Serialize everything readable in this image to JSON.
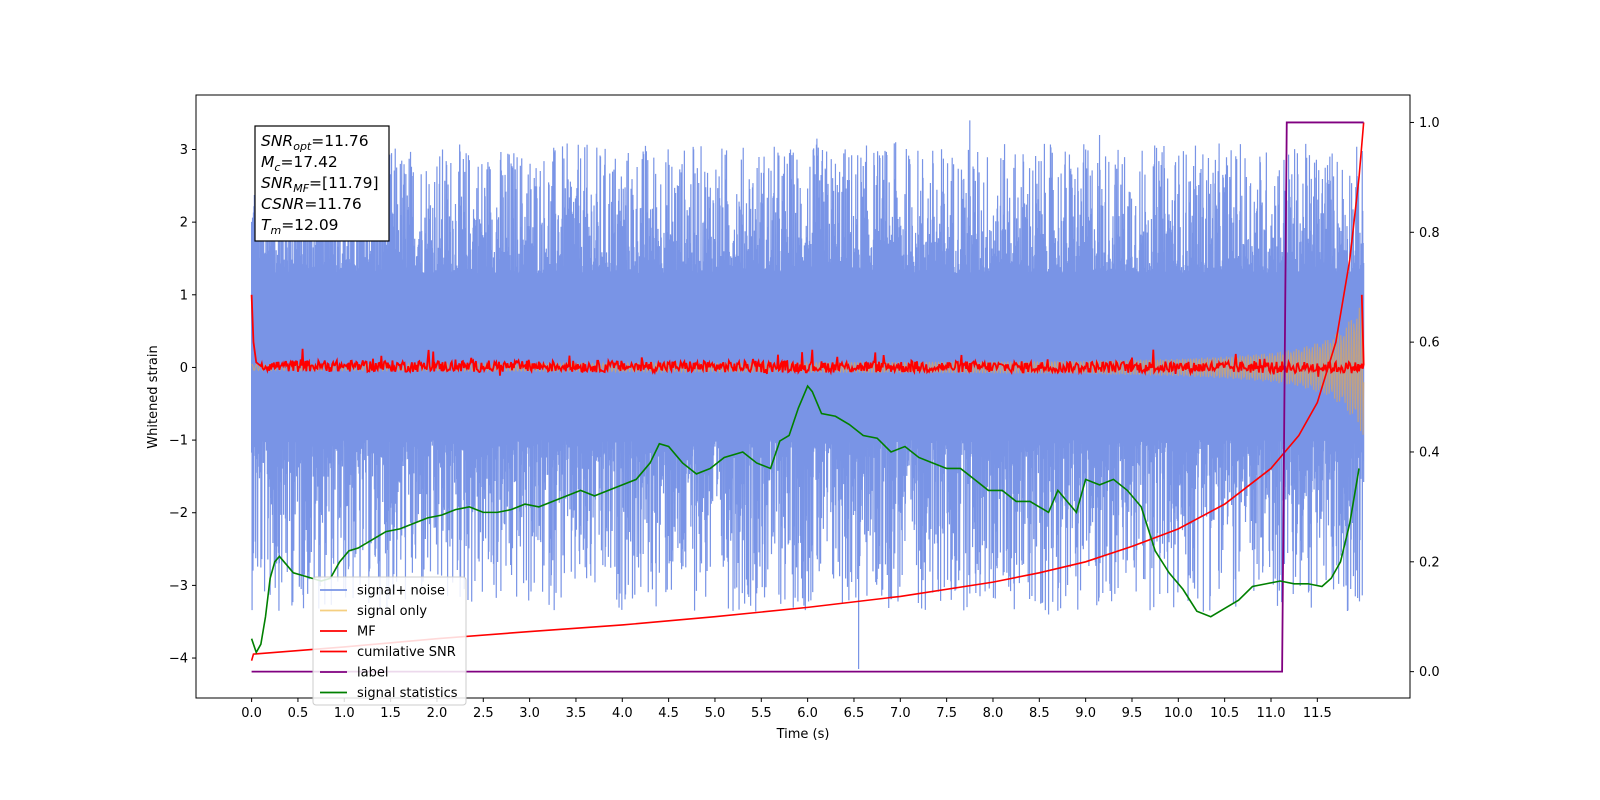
{
  "chart_data": {
    "type": "line",
    "xlabel": "Time (s)",
    "ylabel": "Whitened strain",
    "xlim": [
      -0.6,
      12.5
    ],
    "ylim": [
      -4.55,
      3.75
    ],
    "y2lim": [
      -0.048,
      1.05
    ],
    "x_ticks": [
      0.0,
      0.5,
      1.0,
      1.5,
      2.0,
      2.5,
      3.0,
      3.5,
      4.0,
      4.5,
      5.0,
      5.5,
      6.0,
      6.5,
      7.0,
      7.5,
      8.0,
      8.5,
      9.0,
      9.5,
      10.0,
      10.5,
      11.0,
      11.5
    ],
    "x_tick_labels": [
      "0.0",
      "0.5",
      "1.0",
      "1.5",
      "2.0",
      "2.5",
      "3.0",
      "3.5",
      "4.0",
      "4.5",
      "5.0",
      "5.5",
      "6.0",
      "6.5",
      "7.0",
      "7.5",
      "8.0",
      "8.5",
      "9.0",
      "9.5",
      "10.0",
      "10.5",
      "11.0",
      "11.5"
    ],
    "y_ticks": [
      3,
      2,
      1,
      0,
      -1,
      -2,
      -3,
      -4
    ],
    "y_tick_labels": [
      "3",
      "2",
      "1",
      "0",
      "−1",
      "−2",
      "−3",
      "−4"
    ],
    "y2_ticks": [
      1.0,
      0.8,
      0.6,
      0.4,
      0.2,
      0.0
    ],
    "y2_tick_labels": [
      "1.0",
      "0.8",
      "0.6",
      "0.4",
      "0.2",
      "0.0"
    ],
    "annotation": [
      {
        "base": "SNR",
        "sub": "opt",
        "value": "=11.76"
      },
      {
        "base": "M",
        "sub": "c",
        "value": "=17.42"
      },
      {
        "base": "SNR",
        "sub": "MF",
        "value": "=[11.79]"
      },
      {
        "base": "CSNR",
        "sub": "",
        "value": "=11.76"
      },
      {
        "base": "T",
        "sub": "m",
        "value": "=12.09"
      }
    ],
    "legend": {
      "placement": "lower-left",
      "entries": [
        {
          "label": "signal+ noise",
          "color": "#7994e6"
        },
        {
          "label": "signal only",
          "color": "#f5cf80"
        },
        {
          "label": "MF",
          "color": "#ff0000"
        },
        {
          "label": "cumilative SNR",
          "color": "#ff0000"
        },
        {
          "label": "label",
          "color": "#800080"
        },
        {
          "label": "signal statistics",
          "color": "#008000"
        }
      ]
    },
    "series": [
      {
        "name": "signal+ noise",
        "axis": "left",
        "color": "#7994e6",
        "kind": "noise",
        "x_range": [
          0.0,
          12.0
        ],
        "envelope_upper": [
          1.3,
          3.4
        ],
        "envelope_lower": [
          -1.0,
          -4.15
        ],
        "spike_min": [
          [
            6.55,
            -4.15
          ],
          [
            7.35,
            -3.1
          ],
          [
            7.55,
            -3.2
          ],
          [
            8.6,
            -3.4
          ],
          [
            9.95,
            -3.3
          ],
          [
            3.6,
            -2.75
          ],
          [
            5.35,
            -3.0
          ]
        ],
        "spike_max": [
          [
            7.75,
            3.4
          ],
          [
            1.1,
            3.2
          ],
          [
            6.1,
            3.15
          ],
          [
            9.15,
            3.2
          ],
          [
            4.25,
            3.05
          ],
          [
            6.95,
            3.1
          ]
        ]
      },
      {
        "name": "signal only",
        "axis": "left",
        "color": "#f5cf80",
        "kind": "chirp",
        "x": [
          0.0,
          2.0,
          4.0,
          6.0,
          8.0,
          9.0,
          10.0,
          10.5,
          11.0,
          11.3,
          11.6,
          11.8,
          12.0
        ],
        "amplitude": [
          0.04,
          0.05,
          0.06,
          0.07,
          0.08,
          0.09,
          0.12,
          0.15,
          0.2,
          0.26,
          0.38,
          0.55,
          0.95
        ]
      },
      {
        "name": "MF",
        "axis": "left",
        "color": "#ff0000",
        "kind": "mf",
        "x": [
          0.0,
          0.02,
          0.05,
          0.1,
          12.0
        ],
        "y": [
          1.0,
          0.35,
          0.07,
          0.02,
          0.0
        ],
        "jitter_amplitude": 0.08,
        "end_spike": [
          11.98,
          1.0
        ]
      },
      {
        "name": "cumilative SNR",
        "axis": "right",
        "color": "#ff0000",
        "x": [
          0.0,
          0.02,
          1.0,
          2.0,
          3.0,
          4.0,
          5.0,
          6.0,
          7.0,
          8.0,
          8.5,
          9.0,
          9.5,
          10.0,
          10.5,
          11.0,
          11.3,
          11.5,
          11.7,
          11.85,
          11.95,
          12.0
        ],
        "y": [
          0.02,
          0.032,
          0.045,
          0.06,
          0.073,
          0.085,
          0.1,
          0.117,
          0.137,
          0.163,
          0.18,
          0.2,
          0.228,
          0.26,
          0.305,
          0.37,
          0.43,
          0.49,
          0.6,
          0.75,
          0.9,
          1.0
        ]
      },
      {
        "name": "label",
        "axis": "right",
        "color": "#800080",
        "x": [
          0.0,
          11.12,
          11.17,
          12.0
        ],
        "y": [
          0.0,
          0.0,
          1.0,
          1.0
        ]
      },
      {
        "name": "signal statistics",
        "axis": "right",
        "color": "#008000",
        "x": [
          0.0,
          0.05,
          0.1,
          0.15,
          0.2,
          0.25,
          0.3,
          0.35,
          0.45,
          0.55,
          0.65,
          0.75,
          0.85,
          0.95,
          1.05,
          1.15,
          1.3,
          1.45,
          1.6,
          1.75,
          1.9,
          2.05,
          2.2,
          2.35,
          2.5,
          2.65,
          2.8,
          2.95,
          3.1,
          3.25,
          3.4,
          3.55,
          3.7,
          3.85,
          4.0,
          4.15,
          4.3,
          4.4,
          4.5,
          4.65,
          4.8,
          4.95,
          5.1,
          5.3,
          5.45,
          5.6,
          5.7,
          5.8,
          5.9,
          6.0,
          6.05,
          6.15,
          6.3,
          6.45,
          6.6,
          6.75,
          6.9,
          7.05,
          7.2,
          7.35,
          7.5,
          7.65,
          7.8,
          7.95,
          8.1,
          8.25,
          8.4,
          8.5,
          8.6,
          8.7,
          8.8,
          8.9,
          9.0,
          9.15,
          9.3,
          9.45,
          9.6,
          9.75,
          9.9,
          10.05,
          10.2,
          10.35,
          10.5,
          10.65,
          10.8,
          10.95,
          11.1,
          11.25,
          11.4,
          11.55,
          11.65,
          11.75,
          11.85,
          11.95
        ],
        "y": [
          0.06,
          0.035,
          0.05,
          0.1,
          0.17,
          0.2,
          0.21,
          0.2,
          0.18,
          0.175,
          0.17,
          0.165,
          0.17,
          0.2,
          0.22,
          0.225,
          0.24,
          0.255,
          0.26,
          0.27,
          0.28,
          0.285,
          0.295,
          0.3,
          0.29,
          0.29,
          0.295,
          0.305,
          0.3,
          0.31,
          0.32,
          0.33,
          0.32,
          0.33,
          0.34,
          0.35,
          0.38,
          0.415,
          0.41,
          0.38,
          0.36,
          0.37,
          0.39,
          0.4,
          0.38,
          0.37,
          0.42,
          0.43,
          0.48,
          0.52,
          0.51,
          0.47,
          0.465,
          0.45,
          0.43,
          0.425,
          0.4,
          0.41,
          0.39,
          0.38,
          0.37,
          0.37,
          0.35,
          0.33,
          0.33,
          0.31,
          0.31,
          0.3,
          0.29,
          0.33,
          0.31,
          0.29,
          0.35,
          0.34,
          0.35,
          0.33,
          0.3,
          0.22,
          0.18,
          0.15,
          0.11,
          0.1,
          0.115,
          0.13,
          0.155,
          0.16,
          0.165,
          0.16,
          0.16,
          0.155,
          0.17,
          0.2,
          0.27,
          0.37
        ]
      }
    ]
  }
}
